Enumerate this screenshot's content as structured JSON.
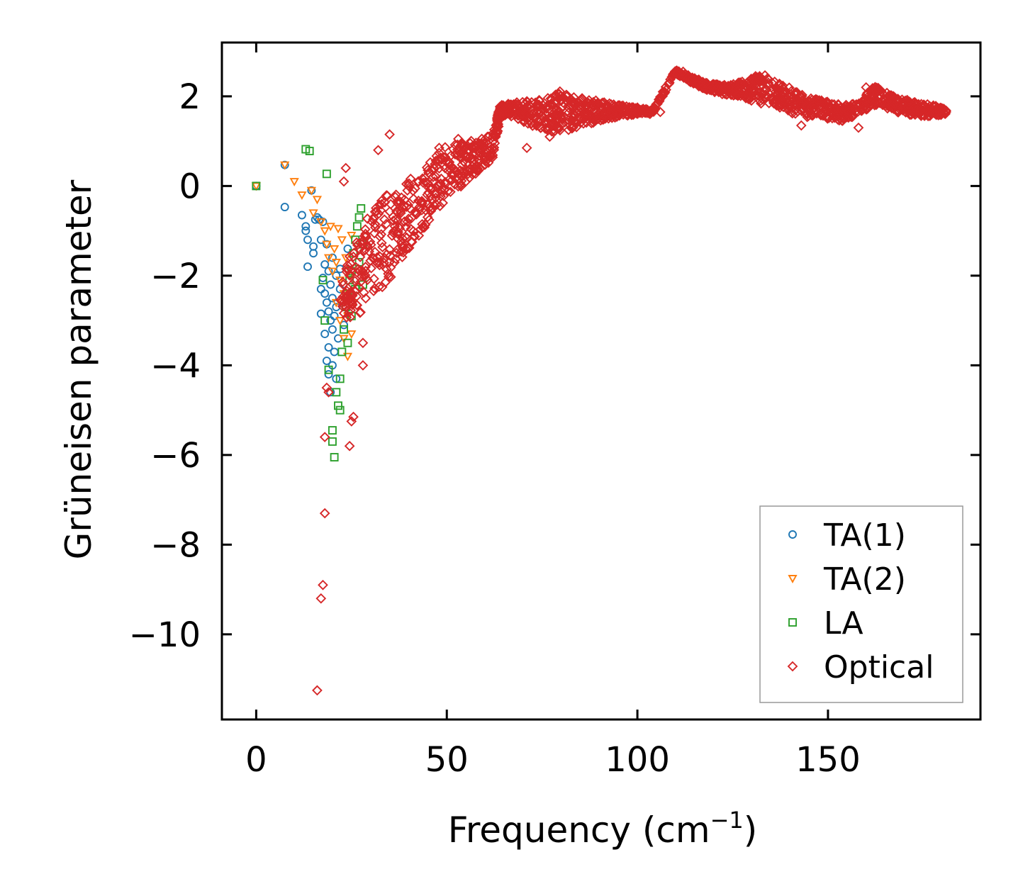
{
  "chart_data": {
    "type": "scatter",
    "title": "",
    "xlabel": "Frequency (cm",
    "xlabel_sup": "−1",
    "xlabel_suffix": ")",
    "ylabel": "Grüneisen parameter",
    "xlim": [
      -9,
      190
    ],
    "ylim": [
      -11.9,
      3.2
    ],
    "xticks": [
      0,
      50,
      100,
      150
    ],
    "xtick_labels": [
      "0",
      "50",
      "100",
      "150"
    ],
    "yticks": [
      2,
      0,
      -2,
      -4,
      -6,
      -8,
      -10
    ],
    "ytick_labels": [
      "2",
      "0",
      "−2",
      "−4",
      "−6",
      "−8",
      "−10"
    ],
    "legend_position": "lower-right",
    "series": [
      {
        "name": "TA(1)",
        "marker": "circle",
        "color": "#1f77b4",
        "points": [
          [
            0,
            0
          ],
          [
            7.5,
            0.47
          ],
          [
            7.5,
            -0.47
          ],
          [
            12,
            -0.65
          ],
          [
            13,
            -0.9
          ],
          [
            13,
            -1.0
          ],
          [
            13.5,
            -1.2
          ],
          [
            13.5,
            -1.8
          ],
          [
            14.5,
            -0.1
          ],
          [
            15,
            -1.35
          ],
          [
            15,
            -1.5
          ],
          [
            15.5,
            -0.75
          ],
          [
            16,
            -0.7
          ],
          [
            16.5,
            -0.75
          ],
          [
            17,
            -1.2
          ],
          [
            17,
            -2.3
          ],
          [
            17,
            -2.85
          ],
          [
            17.5,
            -0.8
          ],
          [
            17.5,
            -2.05
          ],
          [
            18,
            -1.75
          ],
          [
            18,
            -2.4
          ],
          [
            18,
            -3.3
          ],
          [
            18.5,
            -1.3
          ],
          [
            18.5,
            -2.6
          ],
          [
            18.5,
            -3.9
          ],
          [
            19,
            -1.9
          ],
          [
            19,
            -2.8
          ],
          [
            19,
            -3.6
          ],
          [
            19,
            -4.2
          ],
          [
            19.5,
            -2.2
          ],
          [
            19.5,
            -3.0
          ],
          [
            19.5,
            -4.6
          ],
          [
            20,
            -1.6
          ],
          [
            20,
            -2.5
          ],
          [
            20,
            -3.2
          ],
          [
            20,
            -4.0
          ],
          [
            20.5,
            -2.9
          ],
          [
            20.5,
            -3.7
          ],
          [
            21,
            -2.0
          ],
          [
            21,
            -2.7
          ],
          [
            21,
            -4.3
          ],
          [
            21.5,
            -3.4
          ],
          [
            22,
            -2.3
          ],
          [
            22,
            -1.85
          ],
          [
            23,
            -3.1
          ],
          [
            24,
            -1.4
          ]
        ]
      },
      {
        "name": "TA(2)",
        "marker": "triangle-down",
        "color": "#ff7f0e",
        "points": [
          [
            0,
            0
          ],
          [
            7.5,
            0.47
          ],
          [
            10,
            0.1
          ],
          [
            12,
            -0.2
          ],
          [
            14.5,
            -0.1
          ],
          [
            15,
            -0.6
          ],
          [
            16,
            -0.3
          ],
          [
            17,
            -0.8
          ],
          [
            18,
            -1.0
          ],
          [
            18.5,
            -1.3
          ],
          [
            19,
            -1.6
          ],
          [
            19.5,
            -0.9
          ],
          [
            20,
            -1.9
          ],
          [
            20.5,
            -1.4
          ],
          [
            21,
            -1.7
          ],
          [
            21,
            -2.6
          ],
          [
            21.5,
            -0.95
          ],
          [
            22,
            -2.1
          ],
          [
            22,
            -3.0
          ],
          [
            22.5,
            -1.2
          ],
          [
            23,
            -2.4
          ],
          [
            23,
            -3.4
          ],
          [
            23.5,
            -1.6
          ],
          [
            24,
            -2.9
          ],
          [
            24,
            -3.8
          ],
          [
            24.5,
            -2.0
          ],
          [
            25,
            -3.3
          ],
          [
            25,
            -1.1
          ],
          [
            25.5,
            -2.6
          ]
        ]
      },
      {
        "name": "LA",
        "marker": "square",
        "color": "#2ca02c",
        "points": [
          [
            0,
            0
          ],
          [
            13,
            0.82
          ],
          [
            14,
            0.78
          ],
          [
            18.5,
            0.27
          ],
          [
            17.5,
            -2.1
          ],
          [
            18,
            -3.0
          ],
          [
            19,
            -4.1
          ],
          [
            20,
            -5.45
          ],
          [
            20,
            -5.7
          ],
          [
            20.5,
            -6.05
          ],
          [
            21,
            -4.6
          ],
          [
            21.5,
            -4.9
          ],
          [
            22,
            -5.0
          ],
          [
            22,
            -4.3
          ],
          [
            22.5,
            -3.7
          ],
          [
            23,
            -3.2
          ],
          [
            23.5,
            -2.7
          ],
          [
            24,
            -3.5
          ],
          [
            24,
            -2.4
          ],
          [
            24.5,
            -2.1
          ],
          [
            25,
            -1.9
          ],
          [
            25,
            -2.9
          ],
          [
            25.5,
            -1.5
          ],
          [
            26,
            -1.2
          ],
          [
            26,
            -2.3
          ],
          [
            26.5,
            -0.9
          ],
          [
            27,
            -0.7
          ],
          [
            27,
            -1.7
          ],
          [
            27.5,
            -0.5
          ],
          [
            28,
            -1.3
          ],
          [
            28,
            -2.2
          ]
        ]
      },
      {
        "name": "Optical",
        "marker": "diamond",
        "color": "#d62728",
        "points": [
          [
            16,
            -11.25
          ],
          [
            17,
            -9.2
          ],
          [
            17.5,
            -8.9
          ],
          [
            18,
            -7.3
          ],
          [
            18,
            -5.6
          ],
          [
            18.5,
            -4.5
          ],
          [
            19,
            -4.6
          ],
          [
            25,
            -5.25
          ],
          [
            24.5,
            -5.8
          ],
          [
            25.5,
            -5.15
          ],
          [
            28,
            -4.0
          ],
          [
            28,
            -3.5
          ],
          [
            23.5,
            0.4
          ],
          [
            23,
            0.1
          ],
          [
            35,
            1.15
          ],
          [
            32,
            0.8
          ],
          [
            48,
            0.85
          ],
          [
            53,
            1.05
          ],
          [
            71,
            0.85
          ],
          [
            77,
            1.1
          ],
          [
            100,
            1.75
          ],
          [
            106,
            1.65
          ],
          [
            112,
            2.55
          ],
          [
            118,
            2.3
          ],
          [
            124,
            2.2
          ],
          [
            131,
            2.45
          ],
          [
            137,
            1.95
          ],
          [
            143,
            1.35
          ],
          [
            150,
            1.55
          ],
          [
            158,
            1.3
          ],
          [
            160,
            2.2
          ],
          [
            168,
            1.9
          ],
          [
            176,
            1.7
          ],
          [
            181,
            1.65
          ]
        ],
        "envelope": {
          "x": [
            22,
            26,
            30,
            34,
            38,
            42,
            46,
            50,
            54,
            58,
            62,
            64,
            66,
            70,
            74,
            78,
            80,
            84,
            88,
            92,
            96,
            100,
            104,
            110,
            114,
            118,
            122,
            126,
            130,
            134,
            138,
            142,
            146,
            150,
            154,
            158,
            162,
            166,
            170,
            174,
            178,
            181
          ],
          "y_low": [
            -3.0,
            -2.9,
            -2.7,
            -2.2,
            -1.7,
            -1.2,
            -0.7,
            -0.3,
            0.0,
            0.3,
            0.6,
            1.5,
            1.6,
            1.4,
            1.3,
            1.2,
            1.2,
            1.3,
            1.4,
            1.5,
            1.55,
            1.6,
            1.6,
            2.5,
            2.3,
            2.15,
            2.05,
            2.0,
            1.9,
            1.8,
            1.7,
            1.5,
            1.55,
            1.5,
            1.45,
            1.6,
            1.8,
            1.7,
            1.6,
            1.55,
            1.55,
            1.6
          ],
          "y_high": [
            -2.2,
            -1.2,
            -0.6,
            -0.2,
            0.0,
            0.3,
            0.6,
            0.9,
            1.0,
            1.1,
            1.2,
            1.8,
            1.85,
            1.9,
            1.95,
            2.0,
            2.15,
            2.05,
            1.95,
            1.85,
            1.8,
            1.75,
            1.7,
            2.6,
            2.45,
            2.3,
            2.25,
            2.3,
            2.4,
            2.5,
            2.3,
            2.1,
            1.95,
            1.9,
            1.8,
            1.85,
            2.25,
            2.05,
            1.95,
            1.85,
            1.8,
            1.7
          ]
        }
      }
    ]
  }
}
